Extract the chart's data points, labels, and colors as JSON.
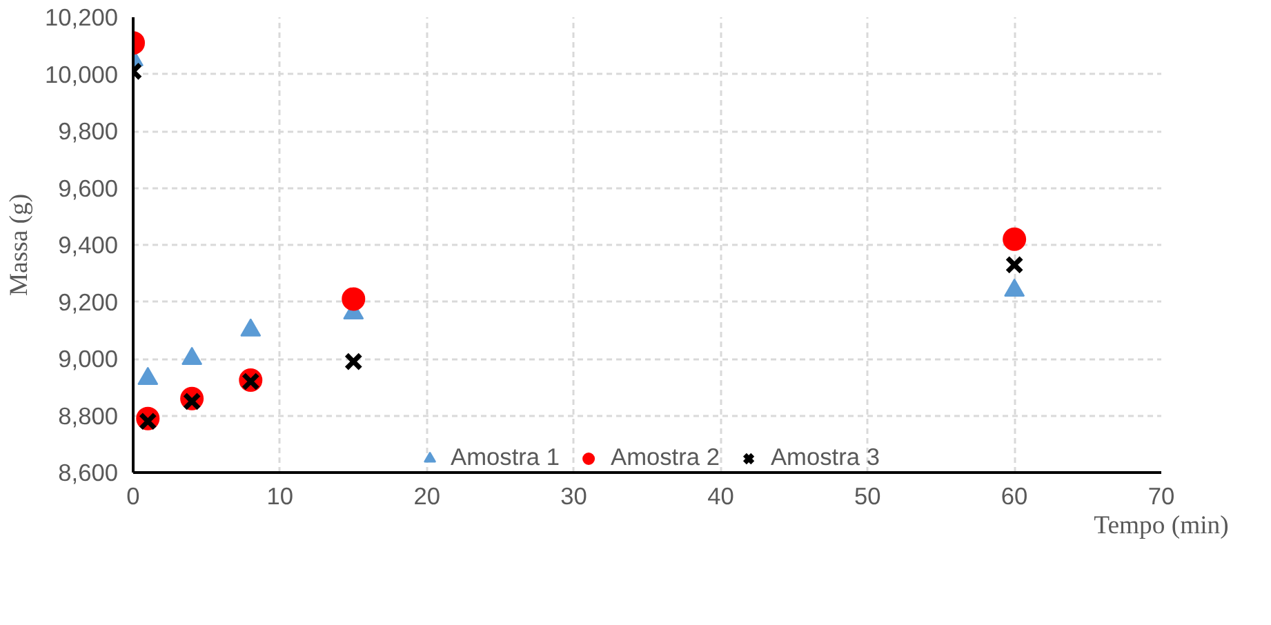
{
  "chart_data": {
    "type": "scatter",
    "xlabel": "Tempo (min)",
    "ylabel": "Massa (g)",
    "x": [
      0,
      1,
      4,
      8,
      15,
      60
    ],
    "series": [
      {
        "name": "Amostra 1",
        "color": "#5b9bd5",
        "marker": "triangle",
        "values": [
          10050,
          8930,
          9000,
          9100,
          9160,
          9240
        ]
      },
      {
        "name": "Amostra 2",
        "color": "#ff0000",
        "marker": "circle",
        "values": [
          10110,
          8790,
          8860,
          8925,
          9210,
          9420
        ]
      },
      {
        "name": "Amostra 3",
        "color": "#000000",
        "marker": "cross",
        "values": [
          10010,
          8780,
          8850,
          8920,
          8990,
          9330
        ]
      }
    ],
    "xlim": [
      0,
      70
    ],
    "xticks": [
      0,
      10,
      20,
      30,
      40,
      50,
      60,
      70
    ],
    "ylim": [
      8600,
      10200
    ],
    "yticks": [
      {
        "value": 8600,
        "label": "8,600"
      },
      {
        "value": 8800,
        "label": "8,800"
      },
      {
        "value": 9000,
        "label": "9,000"
      },
      {
        "value": 9200,
        "label": "9,200"
      },
      {
        "value": 9400,
        "label": "9,400"
      },
      {
        "value": 9600,
        "label": "9,600"
      },
      {
        "value": 9800,
        "label": "9,800"
      },
      {
        "value": 10000,
        "label": "10,000"
      },
      {
        "value": 10200,
        "label": "10,200"
      }
    ],
    "grid": true,
    "legend": "bottom"
  }
}
